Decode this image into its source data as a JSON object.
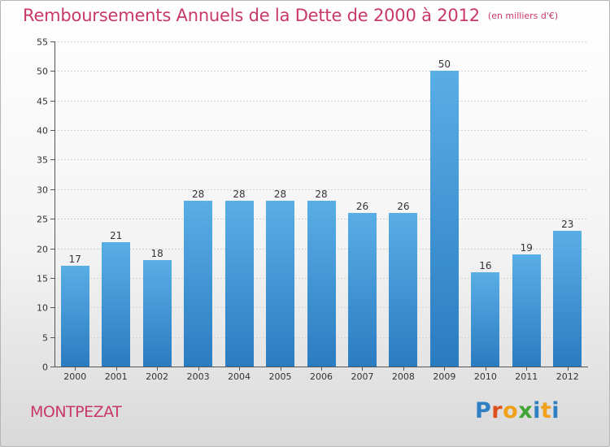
{
  "title": "Remboursements Annuels de la Dette de 2000 à 2012",
  "unit": "(en milliers d'€)",
  "commune": "MONTPEZAT",
  "logo": {
    "text": "Proxiti",
    "letter_colors": [
      "#2e7fc4",
      "#e0501f",
      "#f0a01a",
      "#3fa535",
      "#2e7fc4",
      "#f0a01a",
      "#2e7fc4"
    ]
  },
  "colors": {
    "title": "#c8386a",
    "bar_light": "#5aaee6",
    "bar_dark": "#2a7cc0"
  },
  "chart_data": {
    "type": "bar",
    "categories": [
      "2000",
      "2001",
      "2002",
      "2003",
      "2004",
      "2005",
      "2006",
      "2007",
      "2008",
      "2009",
      "2010",
      "2011",
      "2012"
    ],
    "values": [
      17,
      21,
      18,
      28,
      28,
      28,
      28,
      26,
      26,
      50,
      16,
      19,
      23
    ],
    "title": "Remboursements Annuels de la Dette de 2000 à 2012",
    "xlabel": "",
    "ylabel": "",
    "ylim": [
      0,
      55
    ],
    "yticks": [
      0,
      5,
      10,
      15,
      20,
      25,
      30,
      35,
      40,
      45,
      50,
      55
    ],
    "grid": true,
    "data_labels": true
  }
}
